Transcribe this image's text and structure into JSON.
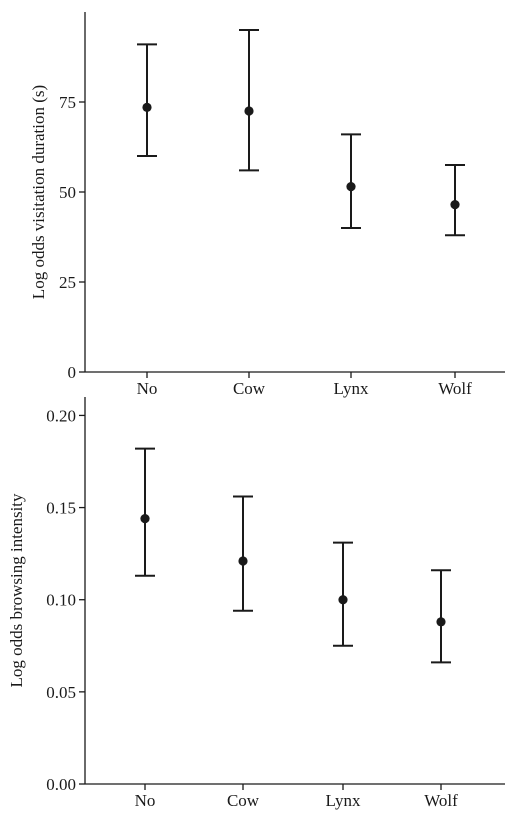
{
  "chart_data": [
    {
      "type": "scatter",
      "title": "",
      "xlabel": "",
      "ylabel": "Log odds visitation duration (s)",
      "categories": [
        "No",
        "Cow",
        "Lynx",
        "Wolf"
      ],
      "ylim": [
        0,
        100
      ],
      "yticks": [
        0,
        25,
        50,
        75
      ],
      "yticks_labels": [
        "0",
        "25",
        "50",
        "75"
      ],
      "values": [
        73.5,
        72.5,
        51.5,
        46.5
      ],
      "lower": [
        60,
        56,
        40,
        38
      ],
      "upper": [
        91,
        95,
        66,
        57.5
      ]
    },
    {
      "type": "scatter",
      "title": "",
      "xlabel": "",
      "ylabel": "Log odds browsing intensity",
      "categories": [
        "No",
        "Cow",
        "Lynx",
        "Wolf"
      ],
      "ylim": [
        0,
        0.21
      ],
      "yticks": [
        0,
        0.05,
        0.1,
        0.15,
        0.2
      ],
      "yticks_labels": [
        "0.00",
        "0.05",
        "0.10",
        "0.15",
        "0.20"
      ],
      "values": [
        0.144,
        0.121,
        0.1,
        0.088
      ],
      "lower": [
        0.113,
        0.094,
        0.075,
        0.066
      ],
      "upper": [
        0.182,
        0.156,
        0.131,
        0.116
      ]
    }
  ]
}
